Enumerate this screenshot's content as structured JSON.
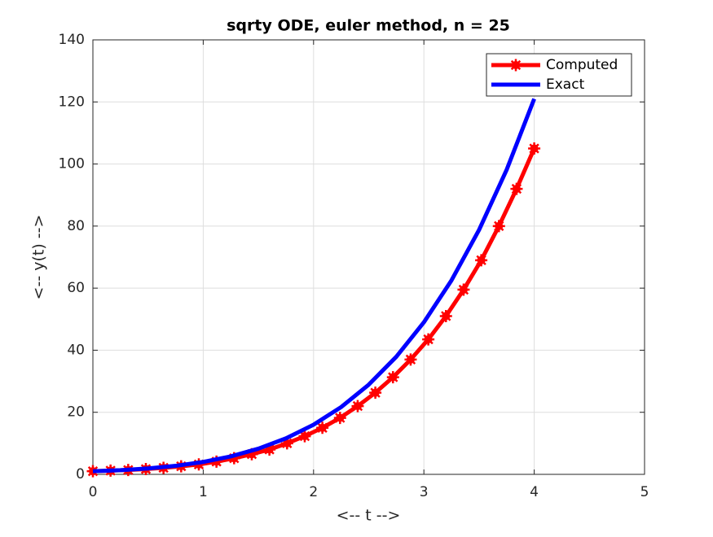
{
  "chart_data": {
    "type": "line",
    "title": "sqrty ODE, euler method, n = 25",
    "xlabel": "<-- t -->",
    "ylabel": "<-- y(t) -->",
    "xlim": [
      0,
      5
    ],
    "xticks": [
      0,
      1,
      2,
      3,
      4,
      5
    ],
    "ylim": [
      0,
      140
    ],
    "yticks": [
      0,
      20,
      40,
      60,
      80,
      100,
      120,
      140
    ],
    "grid": true,
    "legend": "upper right",
    "series": [
      {
        "name": "Computed",
        "color": "#ff0000",
        "marker": "asterisk",
        "x": [
          0,
          0.16,
          0.32,
          0.48,
          0.64,
          0.8,
          0.96,
          1.12,
          1.28,
          1.44,
          1.6,
          1.76,
          1.92,
          2.08,
          2.24,
          2.4,
          2.56,
          2.72,
          2.88,
          3.04,
          3.2,
          3.36,
          3.52,
          3.68,
          3.84,
          4
        ],
        "values": [
          1,
          1.2,
          1.4,
          1.7,
          2.1,
          2.6,
          3.2,
          4.1,
          5.2,
          6.5,
          8,
          10,
          12.3,
          15,
          18.2,
          22,
          26.3,
          31.3,
          37,
          43.5,
          51,
          59.5,
          69,
          80,
          92,
          105
        ]
      },
      {
        "name": "Exact",
        "color": "#0000ff",
        "x": [
          0,
          0.25,
          0.5,
          0.75,
          1,
          1.25,
          1.5,
          1.75,
          2,
          2.25,
          2.5,
          2.75,
          3,
          3.25,
          3.5,
          3.75,
          4
        ],
        "values": [
          1,
          1.34,
          1.89,
          2.74,
          4,
          5.79,
          8.27,
          11.6,
          16,
          21.68,
          28.89,
          37.9,
          49,
          62.51,
          78.77,
          98.13,
          121
        ]
      }
    ]
  }
}
